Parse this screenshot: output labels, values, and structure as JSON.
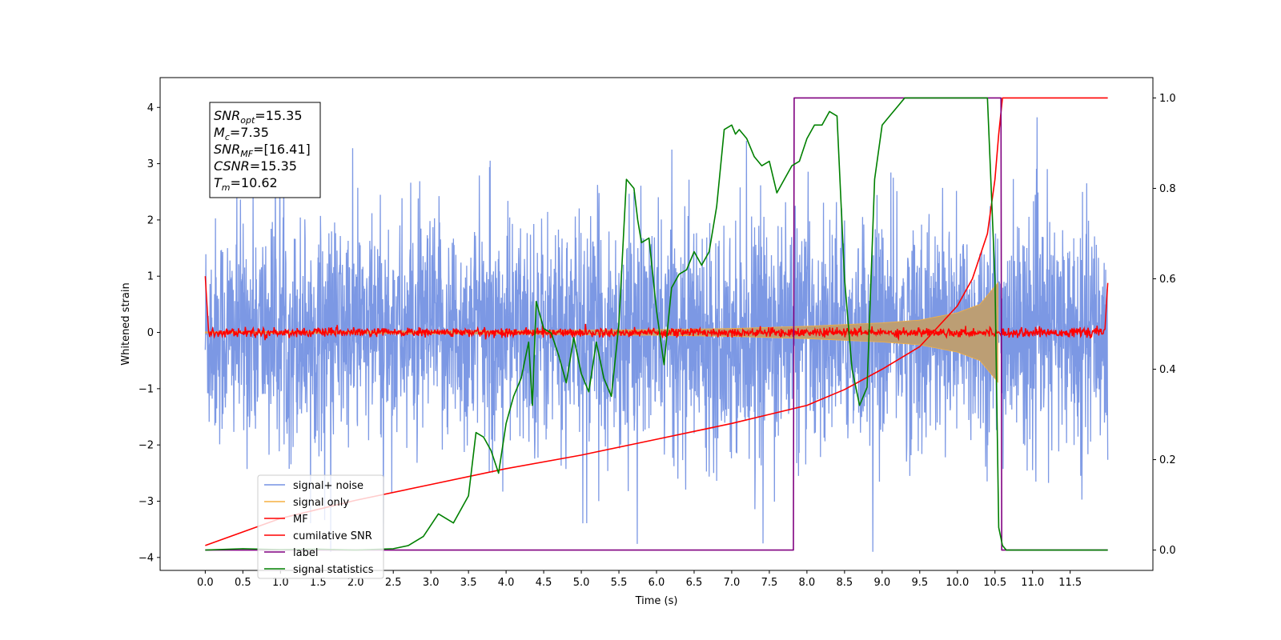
{
  "chart_data": {
    "type": "line",
    "xlabel": "Time (s)",
    "ylabel": "Whitened strain",
    "xlim": [
      -0.6,
      12.6
    ],
    "ylim": [
      -4.23,
      4.53
    ],
    "y2lim": [
      -0.045,
      1.045
    ],
    "x_ticks": [
      "0.0",
      "0.5",
      "1.0",
      "1.5",
      "2.0",
      "2.5",
      "3.0",
      "3.5",
      "4.0",
      "4.5",
      "5.0",
      "5.5",
      "6.0",
      "6.5",
      "7.0",
      "7.5",
      "8.0",
      "8.5",
      "9.0",
      "9.5",
      "10.0",
      "10.5",
      "11.0",
      "11.5"
    ],
    "y_ticks": [
      "4",
      "3",
      "2",
      "1",
      "0",
      "−1",
      "−2",
      "−3",
      "−4"
    ],
    "y2_ticks": [
      "1.0",
      "0.8",
      "0.6",
      "0.4",
      "0.2",
      "0.0"
    ],
    "annotation": [
      {
        "base": "SNR",
        "sub": "opt",
        "rest": "=15.35"
      },
      {
        "base": "M",
        "sub": "c",
        "rest": "=7.35"
      },
      {
        "base": "SNR",
        "sub": "MF",
        "rest": "=[16.41]"
      },
      {
        "base": "CSNR",
        "sub": "",
        "rest": "=15.35"
      },
      {
        "base": "T",
        "sub": "m",
        "rest": "=10.62"
      }
    ],
    "legend_position": "lower-left",
    "series": [
      {
        "name": "signal+ noise",
        "color": "#7592e3",
        "axis": "left",
        "description": "whitened noise, amplitude roughly ±2.5 with peaks to ±4",
        "x_range": [
          0,
          12.0
        ]
      },
      {
        "name": "signal only",
        "color": "#f5b041",
        "axis": "left",
        "description": "chirp envelope growing from ~0 to ~±0.9 at 10.55 s, then ending",
        "envelope": [
          [
            0,
            0.01
          ],
          [
            2,
            0.02
          ],
          [
            4,
            0.03
          ],
          [
            6,
            0.05
          ],
          [
            7,
            0.07
          ],
          [
            8,
            0.11
          ],
          [
            9,
            0.17
          ],
          [
            9.5,
            0.22
          ],
          [
            10,
            0.35
          ],
          [
            10.3,
            0.5
          ],
          [
            10.55,
            0.9
          ]
        ]
      },
      {
        "name": "MF",
        "color": "#ff0000",
        "axis": "left",
        "description": "matched filter output around 0 (±0.1), edge spikes to ~1 at 0 and 12"
      },
      {
        "name": "cumilative SNR",
        "color": "#ff0000",
        "axis": "right",
        "x": [
          0,
          1,
          2,
          3,
          4,
          5,
          6,
          7,
          7.5,
          8,
          8.5,
          9,
          9.5,
          10,
          10.2,
          10.4,
          10.5,
          10.55,
          10.6,
          12.0
        ],
        "values": [
          0.01,
          0.07,
          0.11,
          0.145,
          0.18,
          0.21,
          0.245,
          0.28,
          0.3,
          0.32,
          0.355,
          0.4,
          0.45,
          0.54,
          0.6,
          0.7,
          0.82,
          0.92,
          1.0,
          1.0
        ]
      },
      {
        "name": "label",
        "color": "#800080",
        "axis": "right",
        "x": [
          0,
          7.82,
          7.83,
          10.58,
          10.59,
          12.0
        ],
        "values": [
          0,
          0,
          1,
          1,
          0,
          0
        ]
      },
      {
        "name": "signal statistics",
        "color": "#008000",
        "axis": "right",
        "x": [
          0,
          0.5,
          1.0,
          1.5,
          2.0,
          2.5,
          2.7,
          2.9,
          3.1,
          3.3,
          3.5,
          3.6,
          3.7,
          3.8,
          3.9,
          4.0,
          4.1,
          4.2,
          4.3,
          4.35,
          4.4,
          4.5,
          4.6,
          4.7,
          4.8,
          4.9,
          5.0,
          5.1,
          5.2,
          5.3,
          5.4,
          5.5,
          5.6,
          5.7,
          5.75,
          5.8,
          5.9,
          6.0,
          6.1,
          6.2,
          6.3,
          6.4,
          6.5,
          6.6,
          6.7,
          6.8,
          6.9,
          7.0,
          7.05,
          7.1,
          7.2,
          7.3,
          7.4,
          7.5,
          7.6,
          7.7,
          7.8,
          7.9,
          8.0,
          8.1,
          8.2,
          8.3,
          8.4,
          8.5,
          8.6,
          8.7,
          8.8,
          8.9,
          9.0,
          9.1,
          9.2,
          9.3,
          9.4,
          9.6,
          9.8,
          10.0,
          10.2,
          10.4,
          10.5,
          10.55,
          10.6,
          10.65,
          10.7,
          11.0,
          12.0
        ],
        "values": [
          0.0,
          0.003,
          0.001,
          0.002,
          0.0,
          0.003,
          0.01,
          0.03,
          0.08,
          0.06,
          0.12,
          0.26,
          0.25,
          0.22,
          0.17,
          0.28,
          0.34,
          0.38,
          0.46,
          0.32,
          0.55,
          0.49,
          0.48,
          0.43,
          0.37,
          0.47,
          0.39,
          0.35,
          0.46,
          0.38,
          0.34,
          0.5,
          0.82,
          0.8,
          0.73,
          0.68,
          0.69,
          0.53,
          0.41,
          0.58,
          0.61,
          0.62,
          0.66,
          0.63,
          0.66,
          0.76,
          0.93,
          0.94,
          0.92,
          0.93,
          0.91,
          0.87,
          0.85,
          0.86,
          0.79,
          0.82,
          0.85,
          0.86,
          0.91,
          0.94,
          0.94,
          0.97,
          0.96,
          0.6,
          0.4,
          0.32,
          0.36,
          0.82,
          0.94,
          0.96,
          0.98,
          1.0,
          1.0,
          1.0,
          1.0,
          1.0,
          1.0,
          1.0,
          0.6,
          0.05,
          0.01,
          0.0,
          0.0,
          0.0,
          0.0
        ]
      }
    ]
  }
}
